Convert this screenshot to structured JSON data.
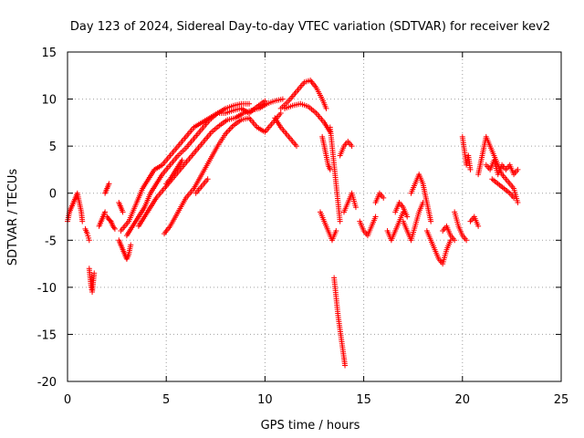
{
  "chart_data": {
    "type": "scatter",
    "title": "Day 123 of 2024, Sidereal Day-to-day VTEC variation (SDTVAR) for receiver kev2",
    "xlabel": "GPS time / hours",
    "ylabel": "SDTVAR / TECUs",
    "xlim": [
      0,
      25
    ],
    "ylim": [
      -20,
      15
    ],
    "xticks": [
      0,
      5,
      10,
      15,
      20,
      25
    ],
    "yticks": [
      -20,
      -15,
      -10,
      -5,
      0,
      5,
      10,
      15
    ],
    "grid": true,
    "marker": "+",
    "color": "#ff0000",
    "series": [
      {
        "name": "SDTVAR",
        "segments": [
          [
            [
              0.0,
              -3.0
            ],
            [
              0.1,
              -2.0
            ],
            [
              0.2,
              -1.5
            ],
            [
              0.3,
              -1.0
            ],
            [
              0.4,
              -0.5
            ],
            [
              0.5,
              0.0
            ],
            [
              0.6,
              -1.0
            ],
            [
              0.7,
              -2.0
            ],
            [
              0.75,
              -3.0
            ]
          ],
          [
            [
              0.9,
              -3.8
            ],
            [
              1.0,
              -4.3
            ],
            [
              1.1,
              -5.0
            ]
          ],
          [
            [
              1.1,
              -8.0
            ],
            [
              1.15,
              -9.0
            ],
            [
              1.2,
              -10.0
            ],
            [
              1.25,
              -10.5
            ],
            [
              1.3,
              -9.5
            ],
            [
              1.35,
              -8.5
            ]
          ],
          [
            [
              1.6,
              -3.5
            ],
            [
              1.7,
              -3.0
            ],
            [
              1.8,
              -2.5
            ],
            [
              1.9,
              -2.0
            ]
          ],
          [
            [
              1.9,
              0.0
            ],
            [
              2.0,
              0.5
            ],
            [
              2.1,
              1.0
            ]
          ],
          [
            [
              2.0,
              -2.5
            ],
            [
              2.1,
              -2.8
            ],
            [
              2.2,
              -3.0
            ],
            [
              2.3,
              -3.5
            ],
            [
              2.4,
              -3.8
            ]
          ],
          [
            [
              2.6,
              -1.0
            ],
            [
              2.7,
              -1.5
            ],
            [
              2.8,
              -2.0
            ]
          ],
          [
            [
              2.6,
              -5.0
            ],
            [
              2.7,
              -5.5
            ],
            [
              2.8,
              -6.0
            ],
            [
              2.9,
              -6.5
            ],
            [
              3.0,
              -7.0
            ],
            [
              3.1,
              -6.5
            ],
            [
              3.2,
              -5.5
            ]
          ],
          [
            [
              2.7,
              -4.0
            ],
            [
              2.9,
              -3.5
            ],
            [
              3.1,
              -3.0
            ],
            [
              3.3,
              -2.0
            ],
            [
              3.5,
              -1.0
            ],
            [
              3.8,
              0.5
            ],
            [
              4.1,
              1.5
            ],
            [
              4.4,
              2.5
            ],
            [
              4.8,
              3.0
            ],
            [
              5.2,
              4.0
            ],
            [
              5.6,
              5.0
            ],
            [
              6.0,
              6.0
            ],
            [
              6.4,
              7.0
            ],
            [
              6.8,
              7.5
            ],
            [
              7.2,
              8.0
            ],
            [
              7.6,
              8.5
            ],
            [
              8.0,
              9.0
            ],
            [
              8.4,
              9.3
            ],
            [
              8.8,
              9.5
            ],
            [
              9.2,
              9.5
            ]
          ],
          [
            [
              3.0,
              -4.5
            ],
            [
              3.3,
              -3.5
            ],
            [
              3.6,
              -2.5
            ],
            [
              3.9,
              -1.5
            ],
            [
              4.2,
              0.0
            ],
            [
              4.5,
              1.0
            ],
            [
              4.8,
              2.0
            ],
            [
              5.2,
              3.0
            ],
            [
              5.6,
              4.0
            ],
            [
              6.0,
              4.8
            ],
            [
              6.4,
              5.8
            ],
            [
              6.8,
              6.8
            ],
            [
              7.2,
              7.8
            ],
            [
              7.6,
              8.5
            ],
            [
              8.0,
              8.5
            ],
            [
              8.4,
              8.8
            ],
            [
              8.8,
              9.0
            ],
            [
              9.2,
              8.5
            ],
            [
              9.6,
              9.2
            ],
            [
              10.0,
              9.8
            ]
          ],
          [
            [
              3.6,
              -3.5
            ],
            [
              3.9,
              -2.5
            ],
            [
              4.2,
              -1.5
            ],
            [
              4.5,
              -0.5
            ],
            [
              4.9,
              0.5
            ],
            [
              5.3,
              1.5
            ],
            [
              5.7,
              2.5
            ],
            [
              6.1,
              3.5
            ],
            [
              6.5,
              4.5
            ],
            [
              6.9,
              5.5
            ],
            [
              7.3,
              6.5
            ],
            [
              7.7,
              7.2
            ],
            [
              8.1,
              7.8
            ],
            [
              8.5,
              8.0
            ],
            [
              8.9,
              8.5
            ],
            [
              9.3,
              8.8
            ],
            [
              9.7,
              9.0
            ],
            [
              10.1,
              9.5
            ],
            [
              10.5,
              9.8
            ],
            [
              10.9,
              10.0
            ]
          ],
          [
            [
              4.9,
              -4.3
            ],
            [
              5.2,
              -3.5
            ],
            [
              5.6,
              -2.0
            ],
            [
              6.0,
              -0.5
            ],
            [
              6.4,
              0.5
            ],
            [
              6.8,
              2.0
            ],
            [
              7.2,
              3.5
            ],
            [
              7.6,
              5.0
            ],
            [
              8.0,
              6.3
            ],
            [
              8.4,
              7.2
            ],
            [
              8.8,
              7.8
            ],
            [
              9.2,
              8.0
            ],
            [
              9.6,
              7.0
            ],
            [
              10.0,
              6.5
            ],
            [
              10.4,
              7.5
            ],
            [
              10.8,
              8.5
            ]
          ],
          [
            [
              5.0,
              1.0
            ],
            [
              5.2,
              1.5
            ],
            [
              5.5,
              2.5
            ],
            [
              5.8,
              3.5
            ]
          ],
          [
            [
              6.5,
              0.0
            ],
            [
              6.7,
              0.5
            ],
            [
              6.9,
              1.0
            ],
            [
              7.1,
              1.5
            ]
          ],
          [
            [
              10.5,
              8.0
            ],
            [
              10.8,
              7.0
            ],
            [
              11.0,
              6.5
            ],
            [
              11.2,
              6.0
            ],
            [
              11.4,
              5.5
            ],
            [
              11.6,
              5.0
            ]
          ],
          [
            [
              10.8,
              9.0
            ],
            [
              11.2,
              9.8
            ],
            [
              11.6,
              10.8
            ],
            [
              12.0,
              11.8
            ],
            [
              12.3,
              12.0
            ],
            [
              12.6,
              11.2
            ],
            [
              12.9,
              10.0
            ],
            [
              13.1,
              9.0
            ]
          ],
          [
            [
              11.0,
              9.0
            ],
            [
              11.4,
              9.3
            ],
            [
              11.8,
              9.5
            ],
            [
              12.2,
              9.2
            ],
            [
              12.6,
              8.5
            ],
            [
              13.0,
              7.5
            ],
            [
              13.3,
              6.5
            ]
          ],
          [
            [
              12.9,
              6.0
            ],
            [
              13.0,
              5.0
            ],
            [
              13.1,
              4.0
            ],
            [
              13.2,
              3.0
            ],
            [
              13.3,
              2.5
            ]
          ],
          [
            [
              13.3,
              7.0
            ],
            [
              13.4,
              5.0
            ],
            [
              13.5,
              3.0
            ],
            [
              13.6,
              1.0
            ],
            [
              13.7,
              -1.0
            ],
            [
              13.8,
              -3.0
            ]
          ],
          [
            [
              13.5,
              -9.0
            ],
            [
              13.6,
              -11.0
            ],
            [
              13.7,
              -13.0
            ],
            [
              13.8,
              -14.5
            ],
            [
              13.9,
              -16.0
            ],
            [
              14.0,
              -17.5
            ],
            [
              14.05,
              -18.3
            ]
          ],
          [
            [
              13.8,
              4.0
            ],
            [
              14.0,
              5.0
            ],
            [
              14.2,
              5.5
            ],
            [
              14.4,
              5.0
            ]
          ],
          [
            [
              12.8,
              -2.0
            ],
            [
              13.0,
              -3.0
            ],
            [
              13.2,
              -4.0
            ],
            [
              13.4,
              -5.0
            ],
            [
              13.6,
              -4.0
            ]
          ],
          [
            [
              14.0,
              -2.0
            ],
            [
              14.2,
              -1.0
            ],
            [
              14.4,
              0.0
            ],
            [
              14.6,
              -1.5
            ]
          ],
          [
            [
              14.8,
              -3.0
            ],
            [
              15.0,
              -4.0
            ],
            [
              15.2,
              -4.5
            ],
            [
              15.4,
              -3.5
            ],
            [
              15.6,
              -2.5
            ]
          ],
          [
            [
              15.6,
              -1.0
            ],
            [
              15.8,
              0.0
            ],
            [
              16.0,
              -0.5
            ]
          ],
          [
            [
              16.2,
              -4.0
            ],
            [
              16.4,
              -5.0
            ],
            [
              16.6,
              -4.0
            ],
            [
              16.8,
              -3.0
            ],
            [
              17.0,
              -2.0
            ]
          ],
          [
            [
              16.6,
              -2.0
            ],
            [
              16.8,
              -1.0
            ],
            [
              17.0,
              -1.5
            ],
            [
              17.2,
              -2.5
            ]
          ],
          [
            [
              17.0,
              -3.0
            ],
            [
              17.2,
              -4.0
            ],
            [
              17.4,
              -5.0
            ],
            [
              17.6,
              -3.5
            ],
            [
              17.8,
              -2.0
            ],
            [
              18.0,
              -1.0
            ]
          ],
          [
            [
              17.4,
              0.0
            ],
            [
              17.6,
              1.0
            ],
            [
              17.8,
              2.0
            ],
            [
              18.0,
              1.0
            ],
            [
              18.2,
              -1.0
            ],
            [
              18.4,
              -3.0
            ]
          ],
          [
            [
              18.2,
              -4.0
            ],
            [
              18.4,
              -5.0
            ],
            [
              18.6,
              -6.0
            ],
            [
              18.8,
              -7.0
            ],
            [
              19.0,
              -7.5
            ],
            [
              19.2,
              -6.0
            ],
            [
              19.4,
              -5.0
            ]
          ],
          [
            [
              19.0,
              -4.0
            ],
            [
              19.2,
              -3.5
            ],
            [
              19.4,
              -4.5
            ],
            [
              19.6,
              -5.0
            ]
          ],
          [
            [
              19.6,
              -2.0
            ],
            [
              19.8,
              -3.5
            ],
            [
              20.0,
              -4.5
            ],
            [
              20.2,
              -5.0
            ]
          ],
          [
            [
              20.0,
              6.0
            ],
            [
              20.1,
              4.5
            ],
            [
              20.2,
              3.0
            ],
            [
              20.3,
              4.0
            ],
            [
              20.4,
              2.5
            ]
          ],
          [
            [
              20.4,
              -3.0
            ],
            [
              20.6,
              -2.5
            ],
            [
              20.8,
              -3.5
            ]
          ],
          [
            [
              20.8,
              2.0
            ],
            [
              21.0,
              4.0
            ],
            [
              21.2,
              6.0
            ],
            [
              21.4,
              5.0
            ],
            [
              21.6,
              4.0
            ],
            [
              21.8,
              3.0
            ],
            [
              22.0,
              2.0
            ],
            [
              22.2,
              1.5
            ],
            [
              22.4,
              1.0
            ],
            [
              22.6,
              0.5
            ],
            [
              22.8,
              -1.0
            ]
          ],
          [
            [
              21.2,
              3.0
            ],
            [
              21.4,
              2.5
            ],
            [
              21.6,
              3.5
            ],
            [
              21.8,
              2.0
            ],
            [
              22.0,
              3.0
            ],
            [
              22.2,
              2.5
            ],
            [
              22.4,
              3.0
            ],
            [
              22.6,
              2.0
            ],
            [
              22.8,
              2.5
            ]
          ],
          [
            [
              21.5,
              1.5
            ],
            [
              21.8,
              1.0
            ],
            [
              22.1,
              0.5
            ],
            [
              22.4,
              0.0
            ],
            [
              22.6,
              -0.5
            ]
          ]
        ]
      }
    ]
  }
}
